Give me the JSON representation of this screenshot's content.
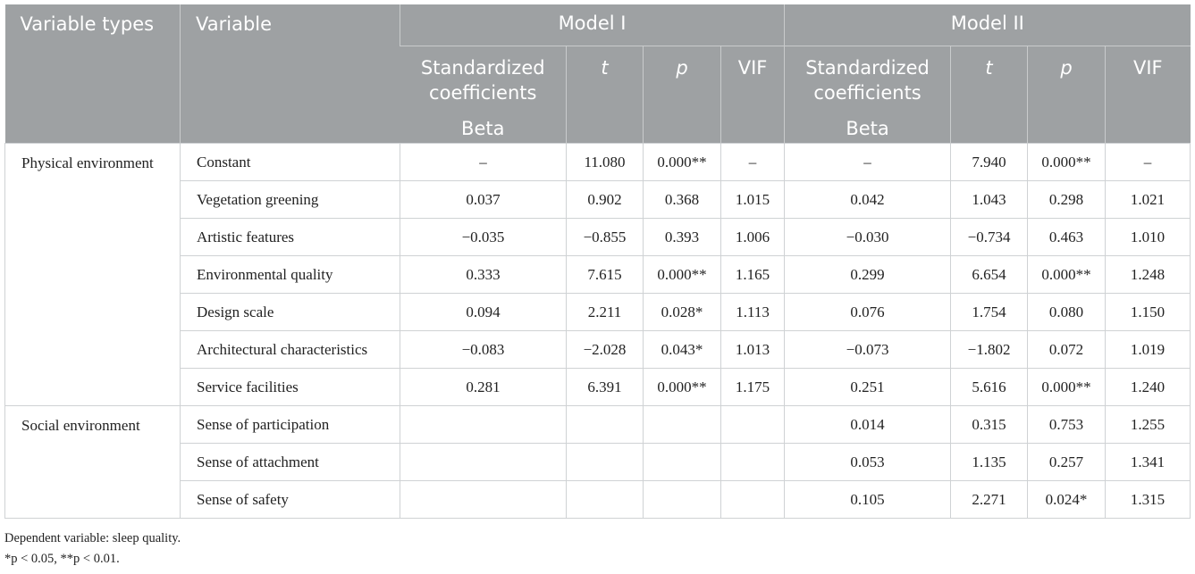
{
  "header": {
    "variable_types": "Variable types",
    "variable": "Variable",
    "model1": "Model I",
    "model2": "Model II",
    "std_coef": "Standardized coefficients",
    "beta": "Beta",
    "t": "t",
    "p": "p",
    "vif": "VIF"
  },
  "groups": [
    {
      "label": "Physical environment",
      "rows": [
        {
          "variable": "Constant",
          "m1": [
            "–",
            "11.080",
            "0.000**",
            "–"
          ],
          "m2": [
            "–",
            "7.940",
            "0.000**",
            "–"
          ]
        },
        {
          "variable": "Vegetation greening",
          "m1": [
            "0.037",
            "0.902",
            "0.368",
            "1.015"
          ],
          "m2": [
            "0.042",
            "1.043",
            "0.298",
            "1.021"
          ]
        },
        {
          "variable": "Artistic features",
          "m1": [
            "−0.035",
            "−0.855",
            "0.393",
            "1.006"
          ],
          "m2": [
            "−0.030",
            "−0.734",
            "0.463",
            "1.010"
          ]
        },
        {
          "variable": "Environmental quality",
          "m1": [
            "0.333",
            "7.615",
            "0.000**",
            "1.165"
          ],
          "m2": [
            "0.299",
            "6.654",
            "0.000**",
            "1.248"
          ]
        },
        {
          "variable": "Design scale",
          "m1": [
            "0.094",
            "2.211",
            "0.028*",
            "1.113"
          ],
          "m2": [
            "0.076",
            "1.754",
            "0.080",
            "1.150"
          ]
        },
        {
          "variable": "Architectural characteristics",
          "m1": [
            "−0.083",
            "−2.028",
            "0.043*",
            "1.013"
          ],
          "m2": [
            "−0.073",
            "−1.802",
            "0.072",
            "1.019"
          ]
        },
        {
          "variable": "Service facilities",
          "m1": [
            "0.281",
            "6.391",
            "0.000**",
            "1.175"
          ],
          "m2": [
            "0.251",
            "5.616",
            "0.000**",
            "1.240"
          ]
        }
      ]
    },
    {
      "label": "Social environment",
      "rows": [
        {
          "variable": "Sense of participation",
          "m1": [
            "",
            "",
            "",
            ""
          ],
          "m2": [
            "0.014",
            "0.315",
            "0.753",
            "1.255"
          ]
        },
        {
          "variable": "Sense of attachment",
          "m1": [
            "",
            "",
            "",
            ""
          ],
          "m2": [
            "0.053",
            "1.135",
            "0.257",
            "1.341"
          ]
        },
        {
          "variable": "Sense of safety",
          "m1": [
            "",
            "",
            "",
            ""
          ],
          "m2": [
            "0.105",
            "2.271",
            "0.024*",
            "1.315"
          ]
        }
      ]
    }
  ],
  "notes": [
    "Dependent variable: sleep quality.",
    "*p < 0.05, **p < 0.01."
  ]
}
